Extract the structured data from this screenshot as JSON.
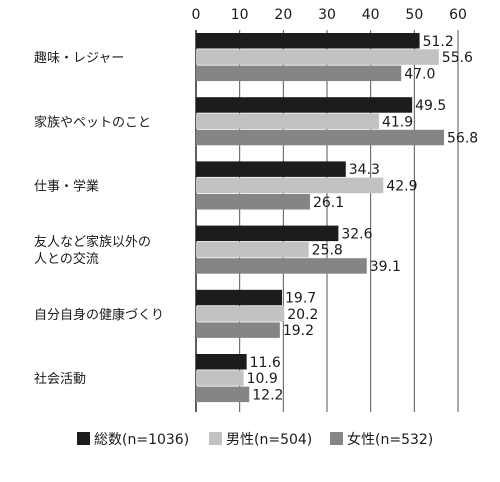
{
  "chart_data": {
    "type": "bar",
    "orientation": "horizontal",
    "xlim": [
      0,
      60
    ],
    "ticks": [
      "0",
      "10",
      "20",
      "30",
      "40",
      "50",
      "60"
    ],
    "grid": true,
    "legend_position": "bottom",
    "categories": [
      [
        "趣味・レジャー"
      ],
      [
        "家族やペットのこと"
      ],
      [
        "仕事・学業"
      ],
      [
        "友人など家族以外の",
        "人との交流"
      ],
      [
        "自分自身の健康づくり"
      ],
      [
        "社会活動"
      ]
    ],
    "series": [
      {
        "name": "総数(n=1036)",
        "color": "#1c1c1c",
        "values": [
          51.2,
          49.5,
          34.3,
          32.6,
          19.7,
          11.6
        ],
        "labels": [
          "51.2",
          "49.5",
          "34.3",
          "32.6",
          "19.7",
          "11.6"
        ]
      },
      {
        "name": "男性(n=504)",
        "color": "#c2c2c2",
        "values": [
          55.6,
          41.9,
          42.9,
          25.8,
          20.2,
          10.9
        ],
        "labels": [
          "55.6",
          "41.9",
          "42.9",
          "25.8",
          "20.2",
          "10.9"
        ]
      },
      {
        "name": "女性(n=532)",
        "color": "#858585",
        "values": [
          47.0,
          56.8,
          26.1,
          39.1,
          19.2,
          12.2
        ],
        "labels": [
          "47.0",
          "56.8",
          "26.1",
          "39.1",
          "19.2",
          "12.2"
        ]
      }
    ]
  }
}
